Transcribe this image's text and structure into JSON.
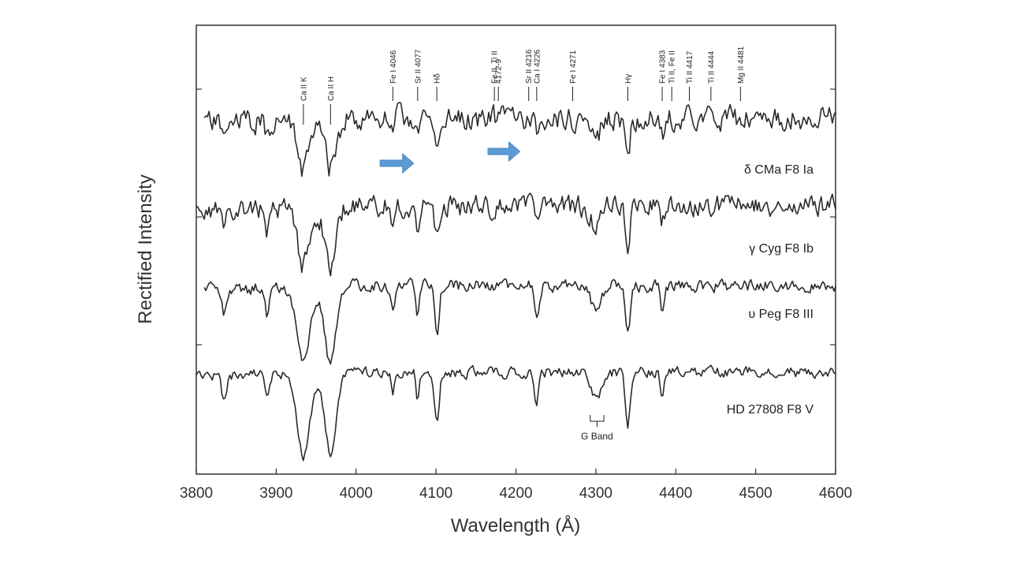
{
  "chart_data": {
    "type": "line",
    "title": "",
    "xlabel": "Wavelength (Å)",
    "ylabel": "Rectified Intensity",
    "xlim": [
      3800,
      4600
    ],
    "xticks": [
      3800,
      3900,
      4000,
      4100,
      4200,
      4300,
      4400,
      4500,
      4600
    ],
    "grid": false,
    "legend": "none",
    "line_color": "#2a2a2a",
    "arrow_color": "#5b9bd5",
    "series": [
      {
        "name": "δ CMa F8 Ia",
        "level": 4
      },
      {
        "name": "γ Cyg  F8 Ib",
        "level": 3
      },
      {
        "name": "υ Peg  F8 III",
        "level": 2
      },
      {
        "name": "HD 27808 F8 V",
        "level": 1
      }
    ],
    "strong_lines": [
      {
        "w": 3934,
        "depth": 0.9,
        "width": 8
      },
      {
        "w": 3968,
        "depth": 0.9,
        "width": 7
      },
      {
        "w": 4101,
        "depth": 0.55,
        "width": 3
      },
      {
        "w": 4340,
        "depth": 0.6,
        "width": 3
      },
      {
        "w": 4226,
        "depth": 0.35,
        "width": 2.5
      },
      {
        "w": 4300,
        "depth": 0.3,
        "width": 6
      },
      {
        "w": 3835,
        "depth": 0.3,
        "width": 3
      },
      {
        "w": 3889,
        "depth": 0.3,
        "width": 3
      },
      {
        "w": 4046,
        "depth": 0.3,
        "width": 2
      },
      {
        "w": 4077,
        "depth": 0.3,
        "width": 2
      },
      {
        "w": 4383,
        "depth": 0.3,
        "width": 2
      }
    ],
    "line_ids": [
      {
        "label": "Ca II K",
        "w": 3934
      },
      {
        "label": "Ca II H",
        "w": 3968
      },
      {
        "label": "Fe I 4046",
        "w": 4046
      },
      {
        "label": "Sr II 4077",
        "w": 4077
      },
      {
        "label": "Hδ",
        "w": 4101
      },
      {
        "label": "Fe II, Ti II",
        "w": 4173
      },
      {
        "label": "4172-9",
        "w": 4178
      },
      {
        "label": "Sr II 4216",
        "w": 4216
      },
      {
        "label": "Ca I 4226",
        "w": 4226
      },
      {
        "label": "Fe I 4271",
        "w": 4271
      },
      {
        "label": "Hγ",
        "w": 4340
      },
      {
        "label": "Fe I 4383",
        "w": 4383
      },
      {
        "label": "Ti II, Fe II",
        "w": 4395
      },
      {
        "label": "Ti II 4417",
        "w": 4417
      },
      {
        "label": "Ti II 4444",
        "w": 4444
      },
      {
        "label": "Mg II 4481",
        "w": 4481
      }
    ],
    "annotations": [
      {
        "label": "G Band",
        "w_start": 4293,
        "w_end": 4310
      }
    ],
    "arrows": [
      {
        "w_start": 4030,
        "w_end": 4072,
        "series": "δ CMa F8 Ia"
      },
      {
        "w_start": 4165,
        "w_end": 4205,
        "series": "δ CMa F8 Ia"
      }
    ]
  }
}
